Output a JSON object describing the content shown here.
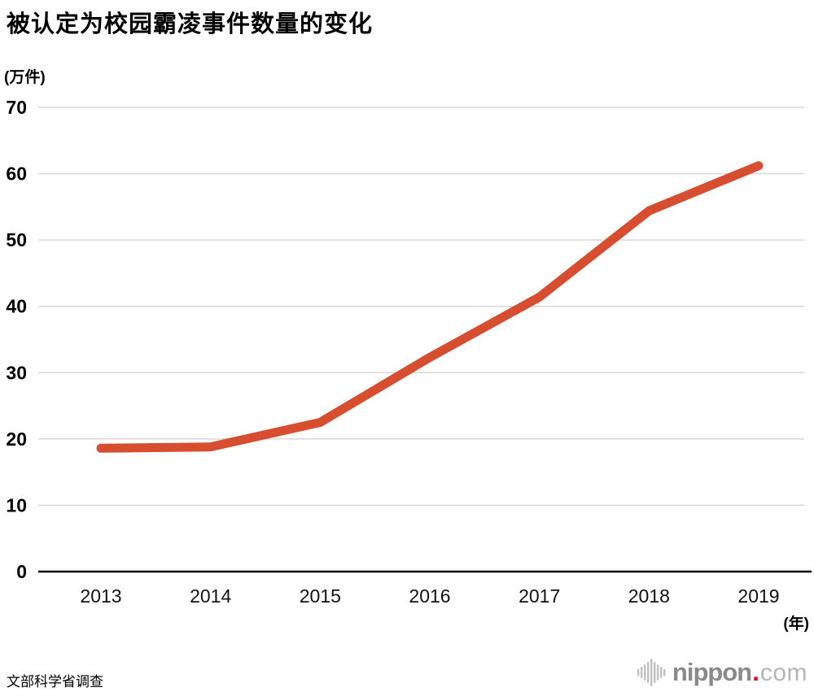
{
  "page": {
    "title": "被认定为校园霸凌事件数量的变化",
    "source": "文部科学省调查"
  },
  "logo": {
    "icon": "soundwave-bars-icon",
    "name": "nippon",
    "dot": ".",
    "tld": "com"
  },
  "colors": {
    "line": "#d64e2f",
    "grid": "#d9d9d9",
    "axis": "#000000",
    "tick_text": "#111111",
    "logo_name": "#8a8a8a",
    "logo_tld": "#b5b5b5",
    "logo_dot": "#e60012",
    "logo_bars": "#c0c0c0"
  },
  "chart_data": {
    "type": "line",
    "title": "被认定为校园霸凌事件数量的变化",
    "categories": [
      "2013",
      "2014",
      "2015",
      "2016",
      "2017",
      "2018",
      "2019"
    ],
    "values": [
      18.6,
      18.8,
      22.5,
      32.3,
      41.4,
      54.4,
      61.2
    ],
    "xlabel": "(年)",
    "ylabel": "(万件)",
    "ylim": [
      0,
      70
    ],
    "ytick_step": 10,
    "yticks": [
      0,
      10,
      20,
      30,
      40,
      50,
      60,
      70
    ],
    "grid": true,
    "legend": "none",
    "line_color": "#d64e2f",
    "line_width": 11
  }
}
